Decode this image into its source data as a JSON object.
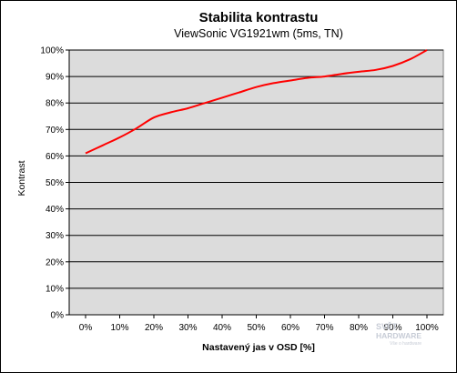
{
  "chart_data": {
    "type": "line",
    "title": "Stabilita kontrastu",
    "subtitle": "ViewSonic VG1921wm  (5ms, TN)",
    "xlabel": "Nastavený jas v OSD [%]",
    "ylabel": "Kontrast",
    "x_categories": [
      "0%",
      "10%",
      "20%",
      "30%",
      "40%",
      "50%",
      "60%",
      "70%",
      "80%",
      "90%",
      "100%"
    ],
    "y_ticks": [
      "0%",
      "10%",
      "20%",
      "30%",
      "40%",
      "50%",
      "60%",
      "70%",
      "80%",
      "90%",
      "100%"
    ],
    "ylim": [
      0,
      100
    ],
    "grid": "horizontal",
    "plot_background": "#dcdcdc",
    "series": [
      {
        "color": "#ff0000",
        "x": [
          0,
          5,
          10,
          15,
          20,
          25,
          30,
          35,
          40,
          45,
          50,
          55,
          60,
          65,
          70,
          75,
          80,
          85,
          90,
          95,
          100
        ],
        "y": [
          61,
          64,
          67,
          70.5,
          74.5,
          76.5,
          78,
          80,
          82,
          84,
          86,
          87.5,
          88.5,
          89.5,
          90,
          91,
          91.8,
          92.5,
          94,
          96.5,
          100
        ]
      }
    ]
  },
  "watermark": {
    "line1": "SVĚT",
    "line2": "HARDWARE",
    "line3": "Vše o hardware"
  }
}
